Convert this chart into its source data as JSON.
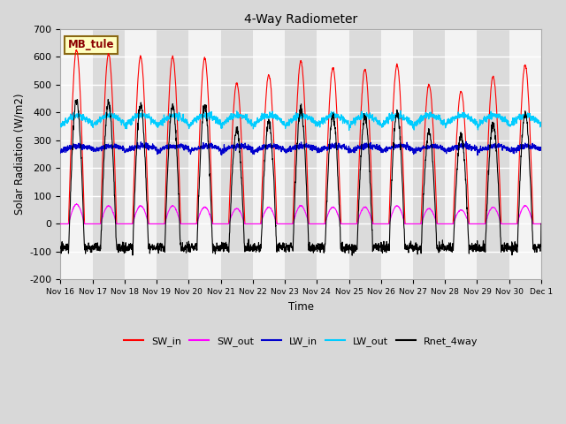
{
  "title": "4-Way Radiometer",
  "xlabel": "Time",
  "ylabel": "Solar Radiation (W/m2)",
  "ylim": [
    -200,
    700
  ],
  "yticks": [
    -200,
    -100,
    0,
    100,
    200,
    300,
    400,
    500,
    600,
    700
  ],
  "annotation_label": "MB_tule",
  "plot_bg_color": "#f0f0f0",
  "series_colors": {
    "SW_in": "#ff0000",
    "SW_out": "#ff00ff",
    "LW_in": "#0000cc",
    "LW_out": "#00ccff",
    "Rnet_4way": "#000000"
  },
  "tick_labels": [
    "Nov 16",
    "Nov 17",
    "Nov 18",
    "Nov 19",
    "Nov 20",
    "Nov 21",
    "Nov 22",
    "Nov 23",
    "Nov 24",
    "Nov 25",
    "Nov 26",
    "Nov 27",
    "Nov 28",
    "Nov 29",
    "Nov 30",
    "Dec 1"
  ],
  "num_days": 15,
  "sw_in_peaks": [
    625,
    610,
    600,
    600,
    595,
    505,
    535,
    585,
    560,
    555,
    570,
    500,
    475,
    530,
    570
  ],
  "sw_out_peaks": [
    70,
    65,
    65,
    65,
    60,
    55,
    60,
    65,
    60,
    60,
    65,
    55,
    50,
    60,
    65
  ],
  "lw_in_base": 265,
  "lw_out_base": 355,
  "rnet_night": -85
}
